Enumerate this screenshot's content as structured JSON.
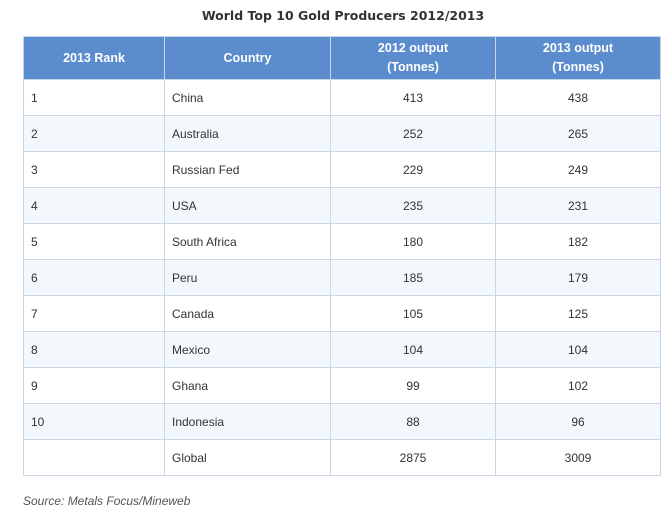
{
  "chart_data": {
    "type": "table",
    "title": "World Top 10 Gold Producers 2012/2013",
    "columns": [
      "2013 Rank",
      "Country",
      "2012 output (Tonnes)",
      "2013 output (Tonnes)"
    ],
    "rows": [
      {
        "rank": "1",
        "country": "China",
        "output_2012": "413",
        "output_2013": "438"
      },
      {
        "rank": "2",
        "country": "Australia",
        "output_2012": "252",
        "output_2013": "265"
      },
      {
        "rank": "3",
        "country": "Russian Fed",
        "output_2012": "229",
        "output_2013": "249"
      },
      {
        "rank": "4",
        "country": "USA",
        "output_2012": "235",
        "output_2013": "231"
      },
      {
        "rank": "5",
        "country": "South Africa",
        "output_2012": "180",
        "output_2013": "182"
      },
      {
        "rank": "6",
        "country": "Peru",
        "output_2012": "185",
        "output_2013": "179"
      },
      {
        "rank": "7",
        "country": "Canada",
        "output_2012": "105",
        "output_2013": "125"
      },
      {
        "rank": "8",
        "country": "Mexico",
        "output_2012": "104",
        "output_2013": "104"
      },
      {
        "rank": "9",
        "country": "Ghana",
        "output_2012": "99",
        "output_2013": "102"
      },
      {
        "rank": "10",
        "country": "Indonesia",
        "output_2012": "88",
        "output_2013": "96"
      },
      {
        "rank": "",
        "country": "Global",
        "output_2012": "2875",
        "output_2013": "3009"
      }
    ],
    "source": "Source: Metals Focus/Mineweb"
  },
  "colors": {
    "header_bg": "#5b8ccd",
    "header_text": "#ffffff",
    "row_alt_bg": "#f3f8fd",
    "border": "#c9d7e7"
  }
}
